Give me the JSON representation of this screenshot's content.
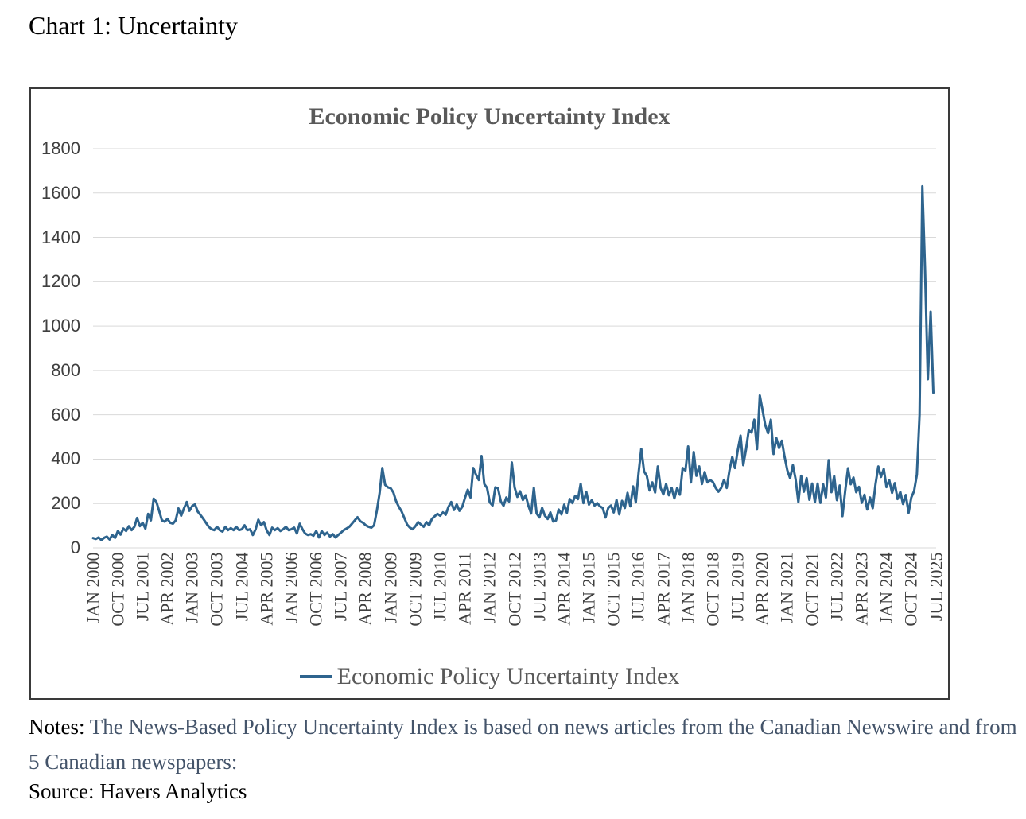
{
  "page": {
    "title": "Chart 1: Uncertainty"
  },
  "chart": {
    "title": "Economic Policy Uncertainty Index",
    "legend_label": "Economic Policy Uncertainty Index",
    "line_color": "#2e648e",
    "grid_color": "#d9d9d9",
    "axis_label_color": "#3f3f3f",
    "title_color": "#595959"
  },
  "chart_data": {
    "type": "line",
    "title": "Economic Policy Uncertainty Index",
    "xlabel": "",
    "ylabel": "",
    "ylim": [
      0,
      1800
    ],
    "y_ticks": [
      0,
      200,
      400,
      600,
      800,
      1000,
      1200,
      1400,
      1600,
      1800
    ],
    "grid": true,
    "legend_position": "bottom",
    "x_unit": "month",
    "x_start": "JAN 2000",
    "x_end": "JUN 2025",
    "x_tick_interval_months": 9,
    "x_tick_labels": [
      "JAN 2000",
      "OCT 2000",
      "JUL 2001",
      "APR 2002",
      "JAN 2003",
      "OCT 2003",
      "JUL 2004",
      "APR 2005",
      "JAN 2006",
      "OCT 2006",
      "JUL 2007",
      "APR 2008",
      "JAN 2009",
      "OCT 2009",
      "JUL 2010",
      "APR 2011",
      "JAN 2012",
      "OCT 2012",
      "JUL 2013",
      "APR 2014",
      "JAN 2015",
      "OCT 2015",
      "JUL 2016",
      "APR 2017",
      "JAN 2018",
      "OCT 2018",
      "JUL 2019",
      "APR 2020",
      "JAN 2021",
      "OCT 2021",
      "JUL 2022",
      "APR 2023",
      "JAN 2024",
      "OCT 2024",
      "JUL 2025"
    ],
    "series": [
      {
        "name": "Economic Policy Uncertainty Index",
        "color": "#2e648e",
        "values": [
          44,
          40,
          47,
          35,
          45,
          51,
          38,
          58,
          45,
          76,
          60,
          87,
          76,
          98,
          80,
          95,
          135,
          98,
          113,
          87,
          153,
          124,
          222,
          207,
          167,
          124,
          118,
          131,
          113,
          109,
          124,
          178,
          145,
          178,
          207,
          167,
          189,
          196,
          164,
          148,
          131,
          113,
          95,
          84,
          80,
          95,
          80,
          73,
          95,
          80,
          89,
          80,
          95,
          80,
          84,
          102,
          80,
          84,
          58,
          84,
          127,
          102,
          116,
          80,
          58,
          91,
          80,
          89,
          76,
          84,
          95,
          80,
          84,
          91,
          65,
          109,
          84,
          65,
          58,
          62,
          55,
          76,
          47,
          76,
          58,
          69,
          51,
          62,
          47,
          58,
          69,
          80,
          87,
          95,
          109,
          124,
          138,
          120,
          113,
          102,
          95,
          91,
          102,
          167,
          247,
          360,
          284,
          273,
          269,
          250,
          211,
          185,
          164,
          135,
          105,
          91,
          84,
          98,
          116,
          105,
          95,
          116,
          102,
          131,
          142,
          153,
          145,
          160,
          149,
          185,
          207,
          171,
          196,
          167,
          185,
          225,
          262,
          227,
          360,
          330,
          306,
          414,
          288,
          270,
          205,
          191,
          273,
          268,
          209,
          190,
          227,
          209,
          385,
          273,
          230,
          255,
          216,
          237,
          191,
          155,
          271,
          155,
          137,
          180,
          145,
          130,
          160,
          119,
          123,
          173,
          151,
          195,
          158,
          220,
          202,
          235,
          220,
          289,
          202,
          253,
          195,
          215,
          191,
          202,
          187,
          180,
          137,
          180,
          191,
          160,
          216,
          151,
          212,
          180,
          248,
          187,
          277,
          205,
          338,
          446,
          345,
          324,
          259,
          295,
          250,
          367,
          270,
          241,
          288,
          237,
          270,
          223,
          270,
          240,
          360,
          349,
          457,
          295,
          432,
          325,
          367,
          288,
          342,
          295,
          306,
          297,
          270,
          253,
          270,
          307,
          270,
          350,
          410,
          360,
          440,
          506,
          373,
          445,
          530,
          520,
          578,
          445,
          687,
          620,
          553,
          517,
          578,
          423,
          495,
          450,
          483,
          410,
          350,
          314,
          373,
          310,
          206,
          325,
          253,
          314,
          217,
          290,
          206,
          290,
          203,
          287,
          227,
          395,
          251,
          324,
          215,
          281,
          143,
          257,
          359,
          287,
          317,
          251,
          275,
          203,
          239,
          173,
          227,
          179,
          287,
          367,
          320,
          356,
          274,
          305,
          248,
          292,
          220,
          252,
          198,
          238,
          158,
          227,
          256,
          330,
          600,
          1630,
          1250,
          760,
          1065,
          700
        ]
      }
    ]
  },
  "notes": {
    "label": "Notes:",
    "body": " The News-Based Policy Uncertainty Index is based on news articles from the Canadian Newswire and from 5 Canadian newspapers:",
    "source_label": "Source:",
    "source_value": " Havers Analytics"
  }
}
